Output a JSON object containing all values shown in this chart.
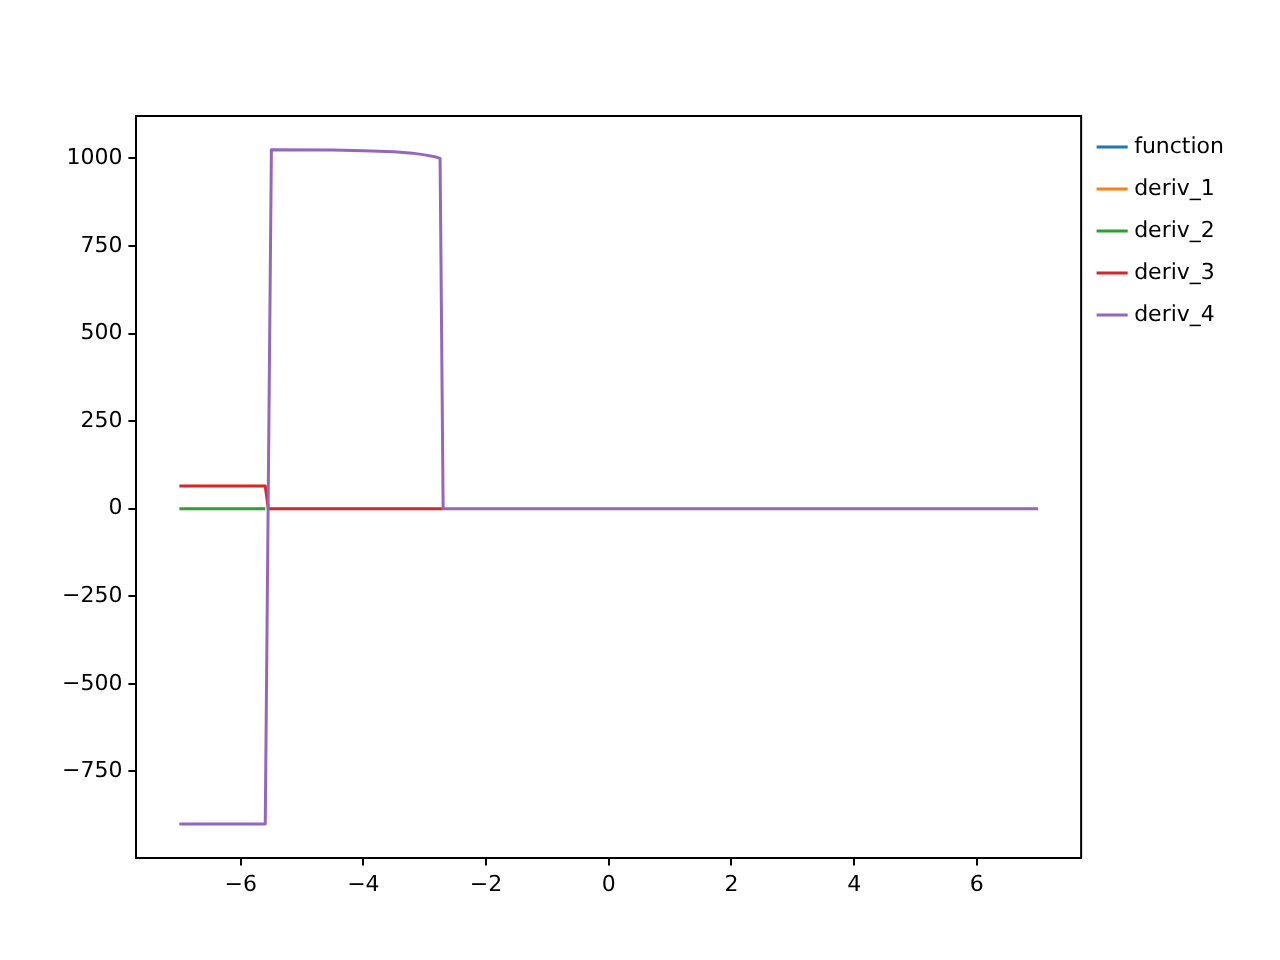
{
  "chart_data": {
    "type": "line",
    "xlim": [
      -7.7,
      7.7
    ],
    "xticks": [
      -6,
      -4,
      -2,
      0,
      2,
      4,
      6
    ],
    "ylim": [
      -996,
      1121
    ],
    "yticks": [
      -750,
      -500,
      -250,
      0,
      250,
      500,
      750,
      1000
    ],
    "grid": false,
    "legend": "top right",
    "marker": "none",
    "line_style": "solid",
    "series": [
      {
        "name": "function",
        "color": "#1f77b4"
      },
      {
        "name": "deriv_1",
        "color": "#ff7f0e"
      },
      {
        "name": "deriv_2",
        "color": "#2ca02c",
        "x": [
          -7,
          -5.6
        ],
        "values": [
          0,
          0
        ]
      },
      {
        "name": "deriv_3",
        "color": "#d62728",
        "x": [
          -7,
          -5.6,
          -5.55,
          -2.7
        ],
        "values": [
          65,
          65,
          0,
          0
        ]
      },
      {
        "name": "deriv_4",
        "color": "#9467bd",
        "x": [
          -7,
          -5.6,
          -5.5,
          -4.5,
          -4,
          -3.5,
          -3.2,
          -3,
          -2.8,
          -2.75,
          -2.7,
          7
        ],
        "values": [
          -900,
          -900,
          1025,
          1024,
          1022,
          1019,
          1015,
          1010,
          1003,
          1000,
          0,
          0
        ]
      }
    ]
  }
}
